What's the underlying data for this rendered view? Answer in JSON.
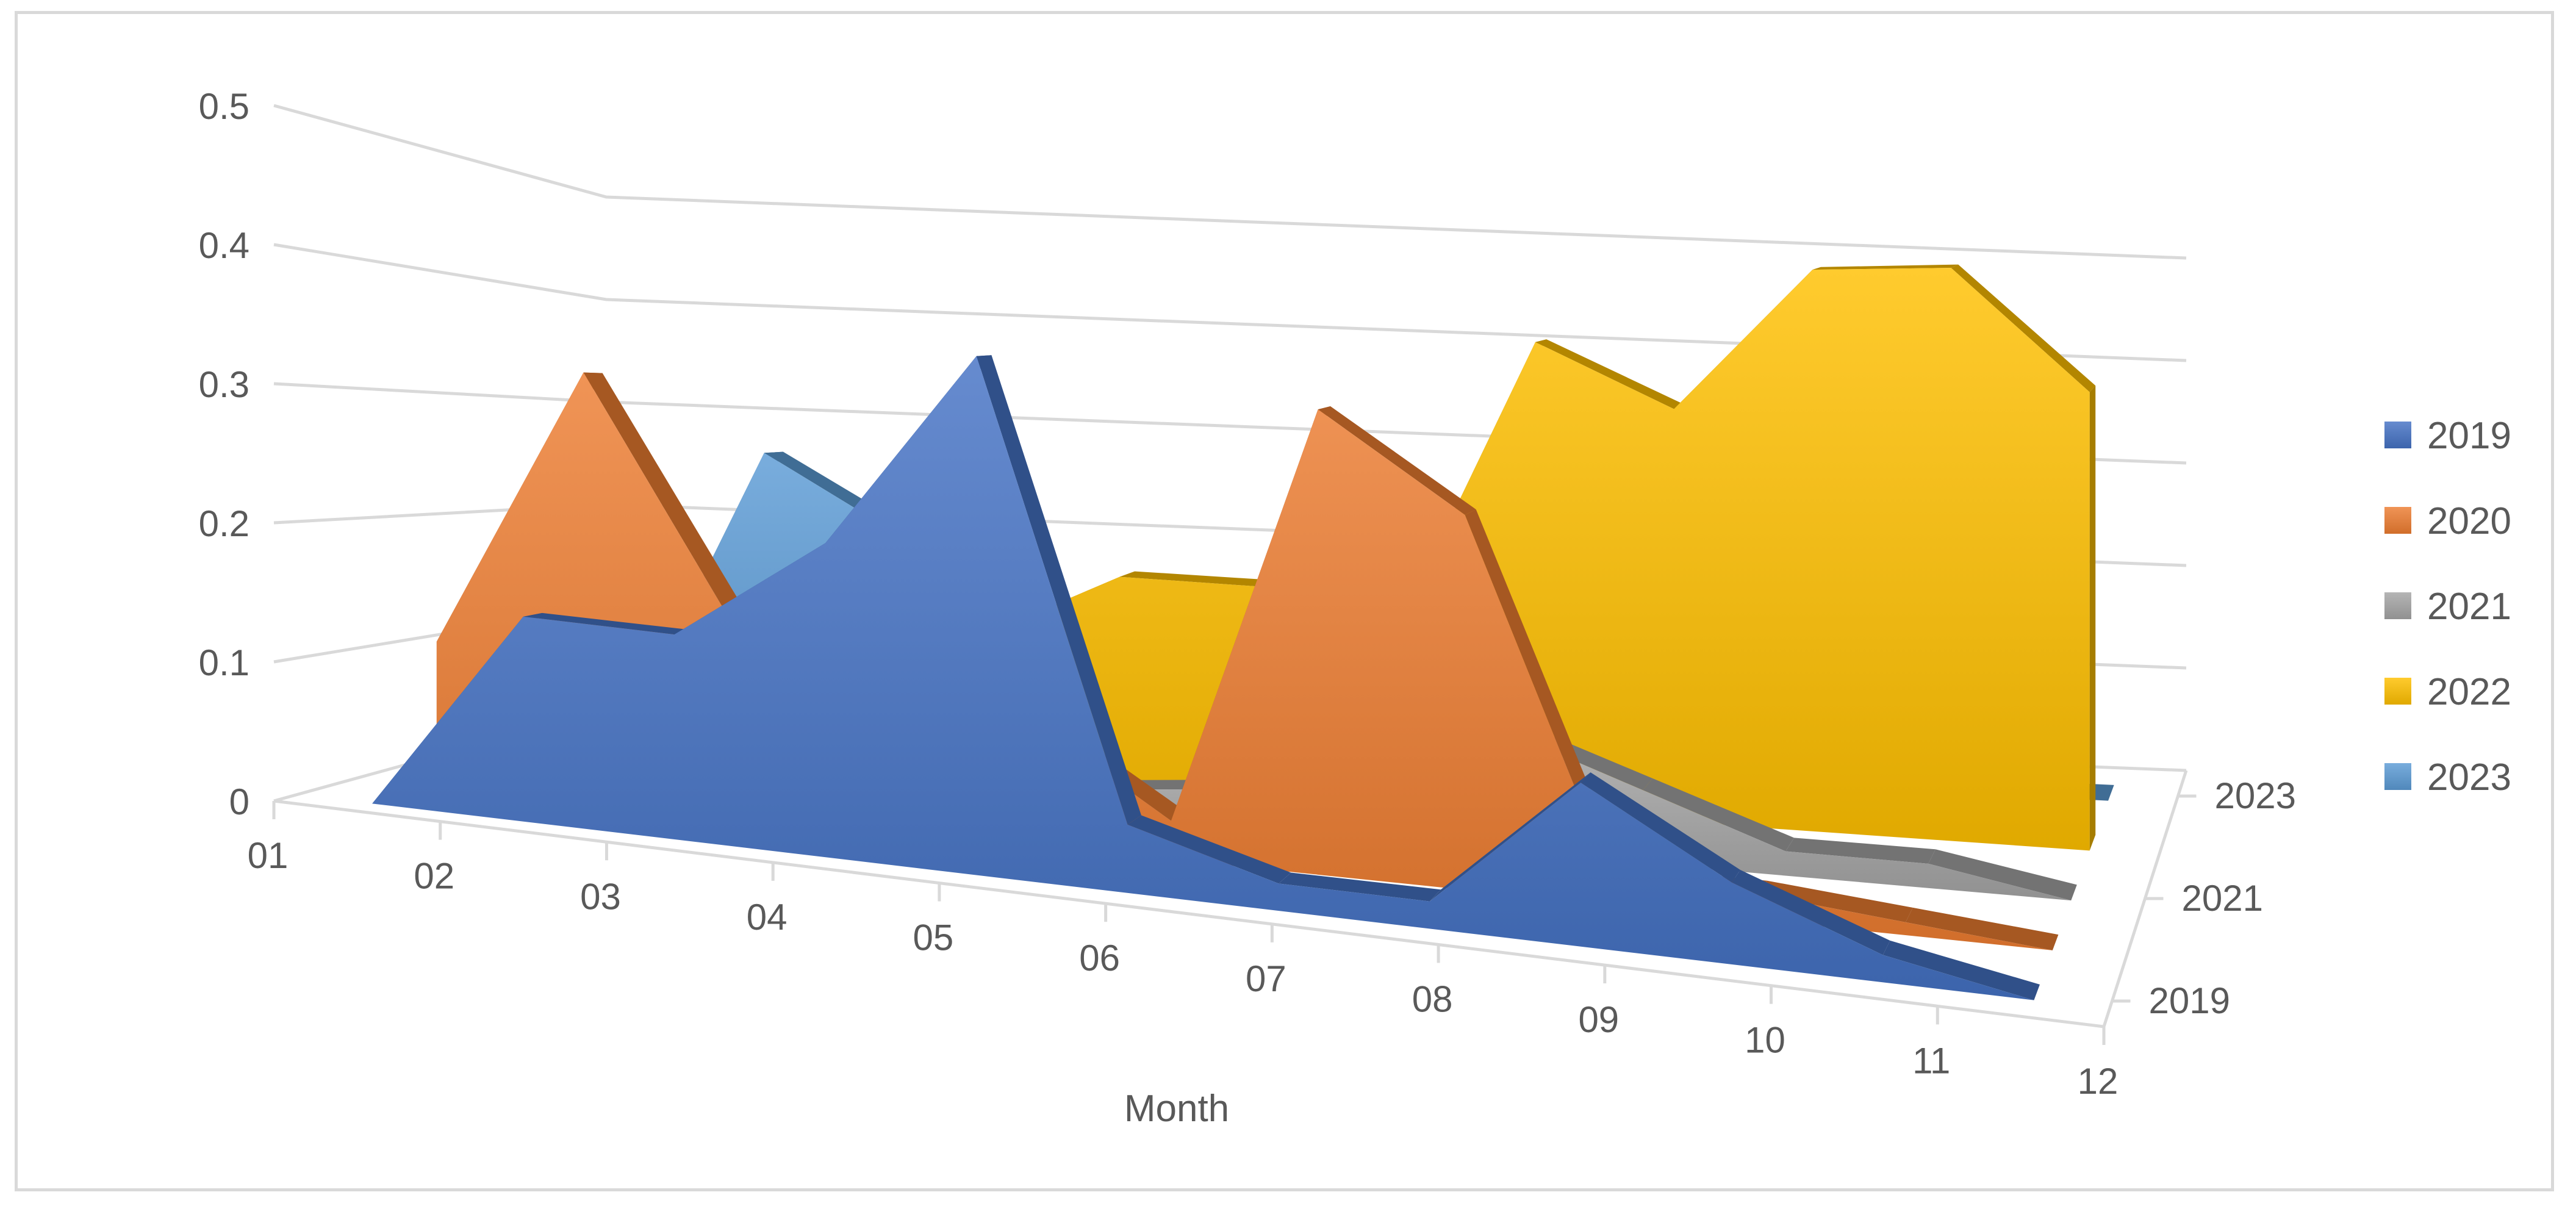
{
  "chart_data": {
    "type": "area",
    "variant": "3d-area",
    "title": "",
    "xlabel": "Month",
    "ylabel": "",
    "ylim": [
      0,
      0.5
    ],
    "yticks": [
      "0",
      "0.1",
      "0.2",
      "0.3",
      "0.4",
      "0.5"
    ],
    "categories": [
      "01",
      "02",
      "03",
      "04",
      "05",
      "06",
      "07",
      "08",
      "09",
      "10",
      "11",
      "12"
    ],
    "depth_labels": [
      "2019",
      "2021",
      "2023"
    ],
    "grid": true,
    "legend_position": "right",
    "series": [
      {
        "name": "2019",
        "color": "#4472c4",
        "values": [
          0,
          0.15,
          0.15,
          0.23,
          0.38,
          0.05,
          0.02,
          0.02,
          0.12,
          0.06,
          0.02,
          0
        ]
      },
      {
        "name": "2020",
        "color": "#ed7d31",
        "values": [
          0.11,
          0.33,
          0.15,
          0.1,
          0.1,
          0.03,
          0.36,
          0.29,
          0.02,
          0.02,
          0.01,
          0
        ]
      },
      {
        "name": "2021",
        "color": "#a5a5a5",
        "values": [
          0,
          0,
          0,
          0.01,
          0.02,
          0.03,
          0.05,
          0.1,
          0.06,
          0.02,
          0.02,
          0
        ]
      },
      {
        "name": "2022",
        "color": "#ffc000",
        "values": [
          0,
          0.1,
          0.12,
          0.12,
          0.18,
          0.18,
          0.15,
          0.41,
          0.36,
          0.49,
          0.5,
          0.4
        ]
      },
      {
        "name": "2023",
        "color": "#5b9bd5",
        "values": [
          0,
          0.26,
          0.19,
          0,
          0,
          0,
          0,
          0,
          0,
          0,
          0,
          0
        ]
      }
    ]
  }
}
